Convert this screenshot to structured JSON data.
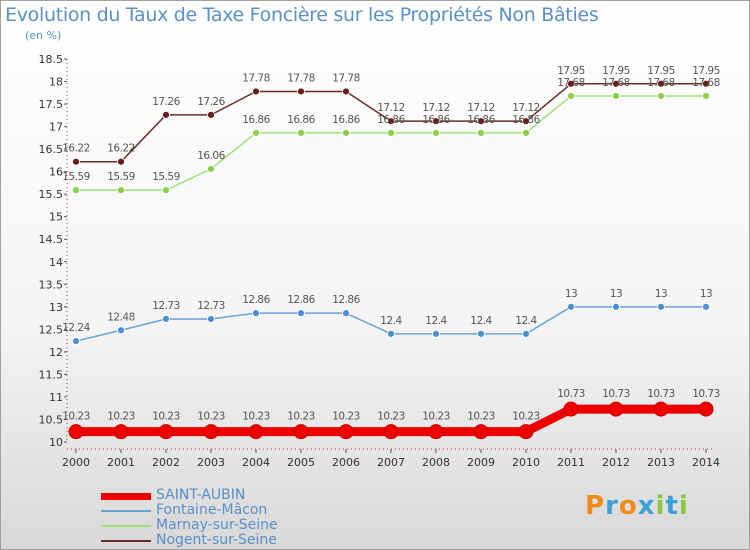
{
  "title": "Evolution du Taux de Taxe Foncière sur les Propriétés Non Bâties",
  "unit_label": "(en %)",
  "brand": {
    "text": "Proxiti",
    "colors": [
      "#f08a1a",
      "#3aa0d8",
      "#f08a1a",
      "#3aa0d8",
      "#8cc63e",
      "#3aa0d8",
      "#8cc63e"
    ]
  },
  "chart_data": {
    "type": "line",
    "title": "Evolution du Taux de Taxe Foncière sur les Propriétés Non Bâties",
    "ylabel": "(en %)",
    "xlabel": "",
    "ylim": [
      10,
      18.5
    ],
    "yticks": [
      "10",
      "10.5",
      "11",
      "11.5",
      "12",
      "12.5",
      "13",
      "13.5",
      "14",
      "14.5",
      "15",
      "15.5",
      "16",
      "16.5",
      "17",
      "17.5",
      "18",
      "18.5"
    ],
    "categories": [
      "2000",
      "2001",
      "2002",
      "2003",
      "2004",
      "2005",
      "2006",
      "2007",
      "2008",
      "2009",
      "2010",
      "2011",
      "2012",
      "2013",
      "2014"
    ],
    "series": [
      {
        "name": "Nogent-sur-Seine",
        "color": "#6b2a2a",
        "marker": "#6b1a1a",
        "values": [
          16.22,
          16.22,
          17.26,
          17.26,
          17.78,
          17.78,
          17.78,
          17.12,
          17.12,
          17.12,
          17.12,
          17.95,
          17.95,
          17.95,
          17.95
        ],
        "labels": [
          "16.22",
          "16.22",
          "17.26",
          "17.26",
          "17.78",
          "17.78",
          "17.78",
          "17.12",
          "17.12",
          "17.12",
          "17.12",
          "17.95",
          "17.95",
          "17.95",
          "17.95"
        ]
      },
      {
        "name": "Marnay-sur-Seine",
        "color": "#9ee07a",
        "marker": "#8cd04a",
        "values": [
          15.59,
          15.59,
          15.59,
          16.06,
          16.86,
          16.86,
          16.86,
          16.86,
          16.86,
          16.86,
          16.86,
          17.68,
          17.68,
          17.68,
          17.68
        ],
        "labels": [
          "15.59",
          "15.59",
          "15.59",
          "16.06",
          "16.86",
          "16.86",
          "16.86",
          "16.86",
          "16.86",
          "16.86",
          "16.86",
          "17.68",
          "17.68",
          "17.68",
          "17.68"
        ]
      },
      {
        "name": "Fontaine-Mâcon",
        "color": "#6aa2d6",
        "marker": "#4a90d0",
        "values": [
          12.24,
          12.48,
          12.73,
          12.73,
          12.86,
          12.86,
          12.86,
          12.4,
          12.4,
          12.4,
          12.4,
          13,
          13,
          13,
          13
        ],
        "labels": [
          "12.24",
          "12.48",
          "12.73",
          "12.73",
          "12.86",
          "12.86",
          "12.86",
          "12.4",
          "12.4",
          "12.4",
          "12.4",
          "13",
          "13",
          "13",
          "13"
        ]
      },
      {
        "name": "SAINT-AUBIN",
        "color": "#ee0000",
        "marker": "#ee0000",
        "values": [
          10.23,
          10.23,
          10.23,
          10.23,
          10.23,
          10.23,
          10.23,
          10.23,
          10.23,
          10.23,
          10.23,
          10.73,
          10.73,
          10.73,
          10.73
        ],
        "labels": [
          "10.23",
          "10.23",
          "10.23",
          "10.23",
          "10.23",
          "10.23",
          "10.23",
          "10.23",
          "10.23",
          "10.23",
          "10.23",
          "10.73",
          "10.73",
          "10.73",
          "10.73"
        ]
      }
    ],
    "legend": [
      "SAINT-AUBIN",
      "Fontaine-Mâcon",
      "Marnay-sur-Seine",
      "Nogent-sur-Seine"
    ],
    "legend_position": "bottom-left",
    "grid": false
  }
}
